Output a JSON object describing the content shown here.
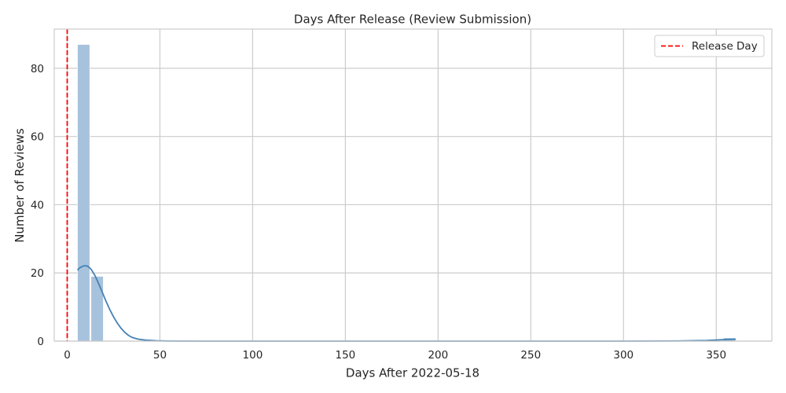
{
  "chart_data": {
    "type": "bar",
    "title": "Days After Release (Review Submission)",
    "xlabel": "Days After 2022-05-18",
    "ylabel": "Number of Reviews",
    "xlim": [
      -7,
      380
    ],
    "ylim": [
      0,
      91.5
    ],
    "x_ticks": [
      0,
      50,
      100,
      150,
      200,
      250,
      300,
      350
    ],
    "y_ticks": [
      0,
      20,
      40,
      60,
      80
    ],
    "grid": true,
    "legend_placement": "top-right",
    "bins": [
      {
        "x0": 5.5,
        "x1": 12.2,
        "count": 87
      },
      {
        "x0": 12.8,
        "x1": 19.5,
        "count": 19
      },
      {
        "x0": 353.8,
        "x1": 360.5,
        "count": 1
      }
    ],
    "kde": [
      [
        5.5,
        20.8
      ],
      [
        7,
        21.6
      ],
      [
        9,
        22.1
      ],
      [
        11,
        22.0
      ],
      [
        13,
        21.0
      ],
      [
        15,
        19.2
      ],
      [
        17,
        16.8
      ],
      [
        19,
        14.2
      ],
      [
        21,
        11.6
      ],
      [
        23,
        9.2
      ],
      [
        25,
        7.1
      ],
      [
        27,
        5.3
      ],
      [
        29,
        3.8
      ],
      [
        31,
        2.6
      ],
      [
        33,
        1.7
      ],
      [
        35,
        1.1
      ],
      [
        38,
        0.6
      ],
      [
        42,
        0.3
      ],
      [
        48,
        0.1
      ],
      [
        55,
        0.02
      ],
      [
        70,
        0
      ],
      [
        300,
        0
      ],
      [
        330,
        0.05
      ],
      [
        345,
        0.2
      ],
      [
        355,
        0.45
      ],
      [
        360.5,
        0.55
      ]
    ],
    "vline": {
      "x": 0,
      "label": "Release Day"
    },
    "colors": {
      "bar": "#a7c2dc",
      "bar_edge": "#ffffff",
      "kde": "#4682b4",
      "vline": "#ff0000",
      "grid": "#cccccc",
      "spine": "#cccccc"
    }
  }
}
